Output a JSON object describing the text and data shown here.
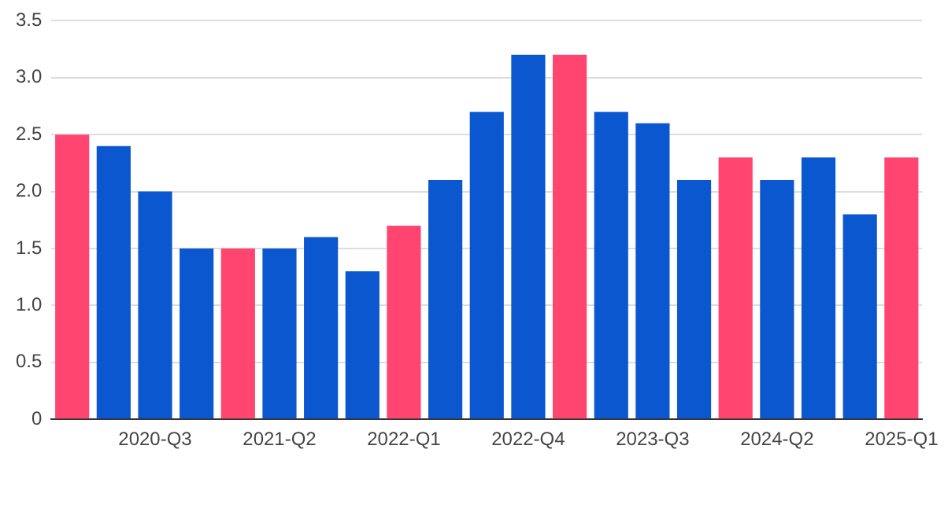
{
  "chart_data": {
    "type": "bar",
    "categories": [
      null,
      null,
      "2020-Q3",
      null,
      null,
      "2021-Q2",
      null,
      null,
      "2022-Q1",
      null,
      null,
      "2022-Q4",
      null,
      null,
      "2023-Q3",
      null,
      null,
      "2024-Q2",
      null,
      null,
      "2025-Q1"
    ],
    "values": [
      2.5,
      2.4,
      2.0,
      1.5,
      1.5,
      1.5,
      1.6,
      1.3,
      1.7,
      2.1,
      2.7,
      3.2,
      3.2,
      2.7,
      2.6,
      2.1,
      2.3,
      2.1,
      2.3,
      1.8,
      2.3
    ],
    "colors": [
      "#ff4570",
      "#0b57d0",
      "#0b57d0",
      "#0b57d0",
      "#ff4570",
      "#0b57d0",
      "#0b57d0",
      "#0b57d0",
      "#ff4570",
      "#0b57d0",
      "#0b57d0",
      "#0b57d0",
      "#ff4570",
      "#0b57d0",
      "#0b57d0",
      "#0b57d0",
      "#ff4570",
      "#0b57d0",
      "#0b57d0",
      "#0b57d0",
      "#ff4570"
    ],
    "ylim": [
      0,
      3.5
    ],
    "yticks": [
      0,
      {
        "value": 0.5,
        "label": "0.5"
      },
      {
        "value": 1,
        "label": "1.0"
      },
      {
        "value": 1.5,
        "label": "1.5"
      },
      {
        "value": 2,
        "label": "2.0"
      },
      {
        "value": 2.5,
        "label": "2.5"
      },
      {
        "value": 3,
        "label": "3.0"
      },
      {
        "value": 3.5,
        "label": "3.5"
      }
    ],
    "grid": "y"
  }
}
